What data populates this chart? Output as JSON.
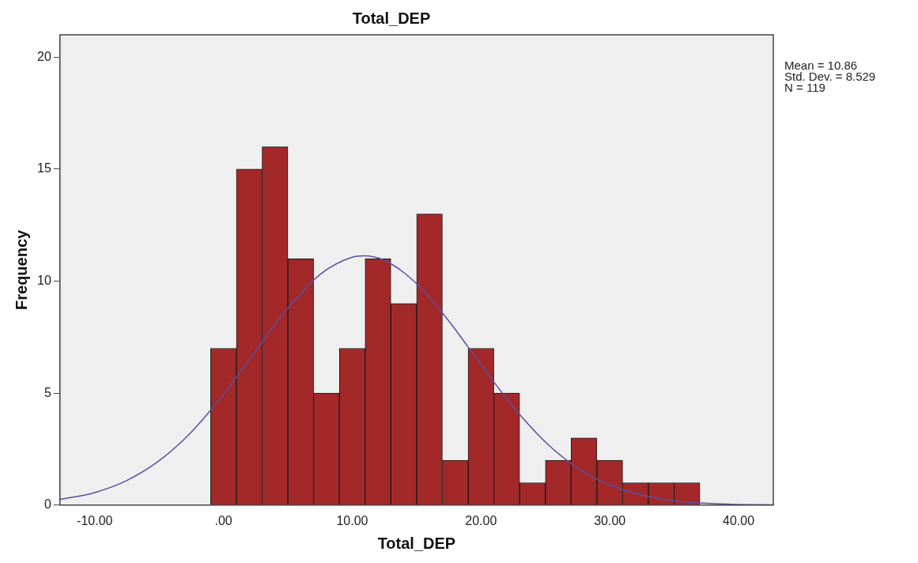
{
  "chart_data": {
    "type": "histogram",
    "title": "Total_DEP",
    "xlabel": "Total_DEP",
    "ylabel": "Frequency",
    "bins": [
      -1,
      1,
      3,
      5,
      7,
      9,
      11,
      13,
      15,
      17,
      19,
      21,
      23,
      25,
      27,
      29,
      31,
      33,
      35,
      37
    ],
    "values": [
      7,
      15,
      16,
      11,
      5,
      7,
      11,
      9,
      13,
      2,
      7,
      5,
      1,
      2,
      3,
      2,
      1,
      1,
      1
    ],
    "color": "#a3282a",
    "series": [
      {
        "type": "line",
        "color": "#5b509e",
        "x": [
          -12.7,
          -10,
          -7.5,
          -5,
          -2.5,
          0,
          2.5,
          5,
          7.5,
          10,
          10.86,
          12.5,
          15,
          17.5,
          20,
          22.5,
          25,
          27.5,
          30,
          32.5,
          35,
          37.5,
          40,
          42.7
        ],
        "values": [
          0.25,
          0.56,
          1.1,
          1.98,
          3.26,
          4.95,
          6.89,
          8.79,
          10.3,
          11.07,
          11.13,
          10.93,
          9.89,
          8.22,
          6.27,
          4.39,
          2.82,
          1.66,
          0.9,
          0.45,
          0.2,
          0.08,
          0.03,
          0.01
        ]
      }
    ],
    "marker": "none",
    "xlim": [
      -12.7,
      42.7
    ],
    "ylim": [
      0,
      21
    ],
    "xticks": [
      {
        "value": -10,
        "label": "-10.00"
      },
      {
        "value": 0,
        "label": ".00"
      },
      {
        "value": 10,
        "label": "10.00"
      },
      {
        "value": 20,
        "label": "20.00"
      },
      {
        "value": 30,
        "label": "30.00"
      },
      {
        "value": 40,
        "label": "40.00"
      }
    ],
    "yticks": [
      0,
      5,
      10,
      15,
      20
    ],
    "grid": false,
    "annotations": [
      "Mean = 10.86",
      "Std. Dev. = 8.529",
      "N = 119"
    ]
  }
}
